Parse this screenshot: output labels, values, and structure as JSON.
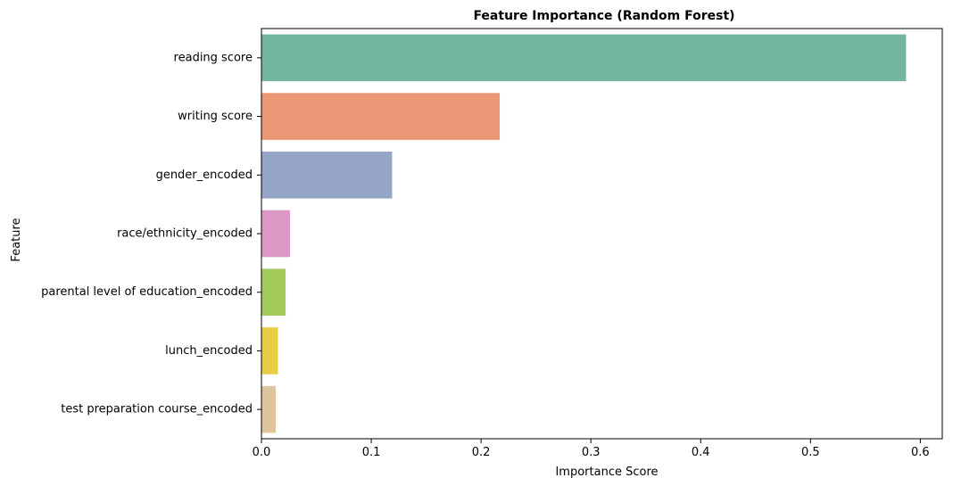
{
  "chart_data": {
    "type": "bar",
    "orientation": "horizontal",
    "title": "Feature Importance (Random Forest)",
    "xlabel": "Importance Score",
    "ylabel": "Feature",
    "xlim": [
      0,
      0.62
    ],
    "x_ticks": [
      0.0,
      0.1,
      0.2,
      0.3,
      0.4,
      0.5,
      0.6
    ],
    "x_tick_labels": [
      "0.0",
      "0.1",
      "0.2",
      "0.3",
      "0.4",
      "0.5",
      "0.6"
    ],
    "grid": false,
    "categories": [
      "reading score",
      "writing score",
      "gender_encoded",
      "race/ethnicity_encoded",
      "parental level of education_encoded",
      "lunch_encoded",
      "test preparation course_encoded"
    ],
    "values": [
      0.587,
      0.217,
      0.119,
      0.026,
      0.022,
      0.015,
      0.013
    ],
    "colors": [
      "#73b6a0",
      "#e99774",
      "#95a5c5",
      "#db98c4",
      "#a3cb5b",
      "#e7cc45",
      "#ddc59d"
    ]
  }
}
